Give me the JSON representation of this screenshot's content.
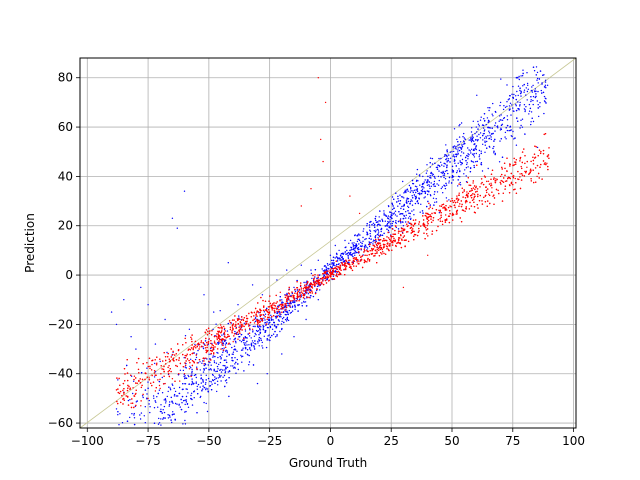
{
  "chart_data": {
    "type": "scatter",
    "title": "",
    "xlabel": "Ground Truth",
    "ylabel": "Prediction",
    "xlim": [
      -103,
      101
    ],
    "ylim": [
      -62,
      88
    ],
    "xticks": [
      -100,
      -75,
      -50,
      -25,
      0,
      25,
      50,
      75,
      100
    ],
    "yticks": [
      -60,
      -40,
      -20,
      0,
      20,
      40,
      60,
      80
    ],
    "xtick_labels": [
      "−100",
      "−75",
      "−50",
      "−25",
      "0",
      "25",
      "50",
      "75",
      "100"
    ],
    "ytick_labels": [
      "−60",
      "−40",
      "−20",
      "0",
      "20",
      "40",
      "60",
      "80"
    ],
    "grid": true,
    "legend": null,
    "reference_line": {
      "from": [
        -103,
        -62
      ],
      "to": [
        101,
        88
      ],
      "color": "#c8c896"
    },
    "series": [
      {
        "color": "#0000ff",
        "trend": {
          "slope": 0.86,
          "intercept": 2.0
        },
        "points": [
          [
            -90,
            -15
          ],
          [
            -88,
            -20
          ],
          [
            -85,
            -10
          ],
          [
            -82,
            -25
          ],
          [
            -80,
            -30
          ],
          [
            -78,
            -5
          ],
          [
            -75,
            -12
          ],
          [
            -72,
            -28
          ],
          [
            -70,
            -35
          ],
          [
            -68,
            -18
          ],
          [
            -65,
            23
          ],
          [
            -63,
            19
          ],
          [
            -60,
            34
          ],
          [
            -58,
            -22
          ],
          [
            -55,
            -32
          ],
          [
            -52,
            -8
          ],
          [
            -50,
            -26
          ],
          [
            -48,
            -15
          ],
          [
            -45,
            -34
          ],
          [
            -42,
            5
          ],
          [
            -40,
            -20
          ],
          [
            -38,
            -12
          ],
          [
            -35,
            -25
          ],
          [
            -32,
            -4
          ],
          [
            -30,
            -18
          ],
          [
            -28,
            -8
          ],
          [
            -25,
            -15
          ],
          [
            -22,
            -2
          ],
          [
            -20,
            -12
          ],
          [
            -18,
            2
          ],
          [
            -15,
            -5
          ],
          [
            -12,
            4
          ],
          [
            -10,
            -3
          ],
          [
            -8,
            2
          ],
          [
            -5,
            6
          ],
          [
            -3,
            -2
          ],
          [
            -1,
            4
          ],
          [
            0,
            8
          ],
          [
            2,
            12
          ],
          [
            4,
            6
          ],
          [
            6,
            14
          ],
          [
            8,
            10
          ],
          [
            10,
            16
          ],
          [
            12,
            14
          ],
          [
            15,
            20
          ],
          [
            18,
            18
          ],
          [
            20,
            22
          ],
          [
            22,
            26
          ],
          [
            25,
            24
          ],
          [
            28,
            30
          ],
          [
            30,
            28
          ],
          [
            32,
            34
          ],
          [
            35,
            36
          ],
          [
            38,
            40
          ],
          [
            40,
            38
          ],
          [
            42,
            45
          ],
          [
            45,
            44
          ],
          [
            48,
            48
          ],
          [
            50,
            50
          ],
          [
            52,
            55
          ],
          [
            55,
            54
          ],
          [
            58,
            58
          ],
          [
            60,
            60
          ],
          [
            62,
            64
          ],
          [
            65,
            62
          ],
          [
            68,
            66
          ],
          [
            70,
            70
          ],
          [
            72,
            68
          ],
          [
            75,
            72
          ],
          [
            78,
            70
          ],
          [
            -30,
            -44
          ],
          [
            -26,
            -40
          ],
          [
            -20,
            -32
          ],
          [
            -15,
            -25
          ],
          [
            -10,
            -18
          ],
          [
            -5,
            -10
          ],
          [
            5,
            4
          ],
          [
            10,
            8
          ],
          [
            20,
            14
          ],
          [
            30,
            20
          ]
        ]
      },
      {
        "color": "#ff0000",
        "trend": {
          "slope": 0.55,
          "intercept": 0.0
        },
        "points": [
          [
            -85,
            -50
          ],
          [
            -82,
            -52
          ],
          [
            -80,
            -48
          ],
          [
            -78,
            -53
          ],
          [
            -75,
            -50
          ],
          [
            -72,
            -47
          ],
          [
            -70,
            -46
          ],
          [
            -68,
            -44
          ],
          [
            -65,
            -42
          ],
          [
            -62,
            -43
          ],
          [
            -60,
            -40
          ],
          [
            -58,
            -38
          ],
          [
            -55,
            -38
          ],
          [
            -52,
            -36
          ],
          [
            -50,
            -35
          ],
          [
            -48,
            -32
          ],
          [
            -45,
            -30
          ],
          [
            -42,
            -28
          ],
          [
            -40,
            -27
          ],
          [
            -38,
            -26
          ],
          [
            -35,
            -22
          ],
          [
            -32,
            -22
          ],
          [
            -30,
            -20
          ],
          [
            -28,
            -18
          ],
          [
            -25,
            -15
          ],
          [
            -22,
            -14
          ],
          [
            -20,
            -12
          ],
          [
            -18,
            -10
          ],
          [
            -15,
            -9
          ],
          [
            -12,
            -6
          ],
          [
            -10,
            -5
          ],
          [
            -8,
            -4
          ],
          [
            -5,
            -2
          ],
          [
            -3,
            -1
          ],
          [
            -1,
            0
          ],
          [
            0,
            2
          ],
          [
            2,
            3
          ],
          [
            4,
            4
          ],
          [
            6,
            5
          ],
          [
            8,
            6
          ],
          [
            10,
            7
          ],
          [
            12,
            8
          ],
          [
            15,
            10
          ],
          [
            18,
            12
          ],
          [
            20,
            13
          ],
          [
            22,
            14
          ],
          [
            25,
            15
          ],
          [
            28,
            17
          ],
          [
            30,
            18
          ],
          [
            32,
            20
          ],
          [
            35,
            21
          ],
          [
            38,
            24
          ],
          [
            40,
            25
          ],
          [
            42,
            27
          ],
          [
            45,
            28
          ],
          [
            48,
            30
          ],
          [
            50,
            31
          ],
          [
            52,
            32
          ],
          [
            55,
            34
          ],
          [
            58,
            35
          ],
          [
            60,
            36
          ],
          [
            62,
            37
          ],
          [
            65,
            38
          ],
          [
            68,
            39
          ],
          [
            70,
            40
          ],
          [
            72,
            38
          ],
          [
            75,
            40
          ],
          [
            78,
            41
          ],
          [
            80,
            42
          ],
          [
            85,
            40
          ],
          [
            -5,
            80
          ],
          [
            -2,
            70
          ],
          [
            -4,
            55
          ],
          [
            -8,
            35
          ],
          [
            -12,
            28
          ],
          [
            -3,
            46
          ],
          [
            8,
            32
          ],
          [
            12,
            25
          ],
          [
            30,
            -5
          ],
          [
            40,
            8
          ]
        ]
      }
    ]
  }
}
